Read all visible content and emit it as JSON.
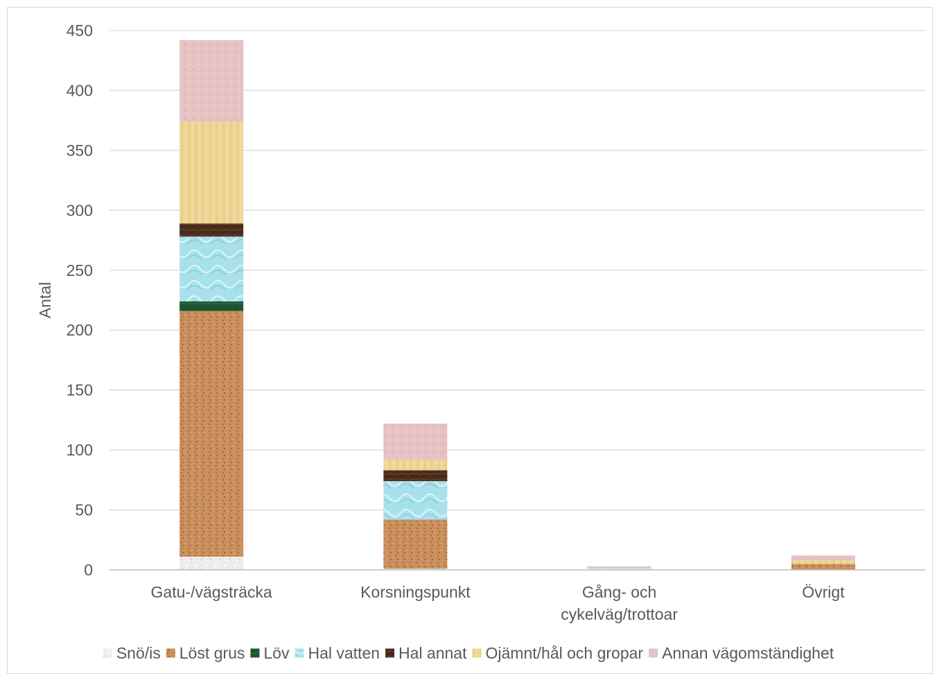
{
  "chart_data": {
    "type": "bar",
    "stacked": true,
    "title": "",
    "xlabel": "",
    "ylabel": "Antal",
    "ylim": [
      0,
      450
    ],
    "yticks": [
      0,
      50,
      100,
      150,
      200,
      250,
      300,
      350,
      400,
      450
    ],
    "grid": true,
    "legend_position": "bottom",
    "categories": [
      "Gatu-/vägsträcka",
      "Korsningspunkt",
      "Gång- och\ncykelväg/trottoar",
      "Övrigt"
    ],
    "series": [
      {
        "name": "Snö/is",
        "color": "#eeeeee",
        "pattern": "snow",
        "values": [
          11,
          1,
          1,
          0
        ]
      },
      {
        "name": "Löst grus",
        "color": "#c98f5c",
        "pattern": "sand",
        "values": [
          205,
          41,
          0,
          5
        ]
      },
      {
        "name": "Löv",
        "color": "#1e5631",
        "pattern": "leaf",
        "values": [
          8,
          0,
          0,
          0
        ]
      },
      {
        "name": "Hal vatten",
        "color": "#a8e1ec",
        "pattern": "water",
        "values": [
          54,
          32,
          1,
          0
        ]
      },
      {
        "name": "Hal annat",
        "color": "#4d2e1e",
        "pattern": "wood",
        "values": [
          11,
          9,
          0,
          0
        ]
      },
      {
        "name": "Ojämnt/hål och gropar",
        "color": "#efd595",
        "pattern": "parchment",
        "values": [
          85,
          9,
          0,
          3
        ]
      },
      {
        "name": "Annan vägomständighet",
        "color": "#e6c2c2",
        "pattern": "pink",
        "values": [
          68,
          30,
          1,
          4
        ]
      }
    ]
  }
}
